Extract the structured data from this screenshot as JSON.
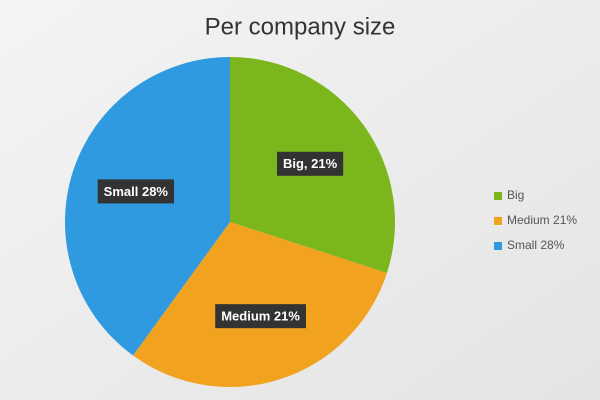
{
  "chart_data": {
    "type": "pie",
    "title": "Per company size",
    "categories": [
      "Big",
      "Medium 21%",
      "Small 28%"
    ],
    "values": [
      21,
      21,
      28
    ],
    "value_labels": [
      "Big, 21%",
      "Medium 21%",
      "Small 28%"
    ],
    "colors": [
      "#7bb61c",
      "#f1a21f",
      "#2f9ae0"
    ],
    "legend": "right"
  }
}
